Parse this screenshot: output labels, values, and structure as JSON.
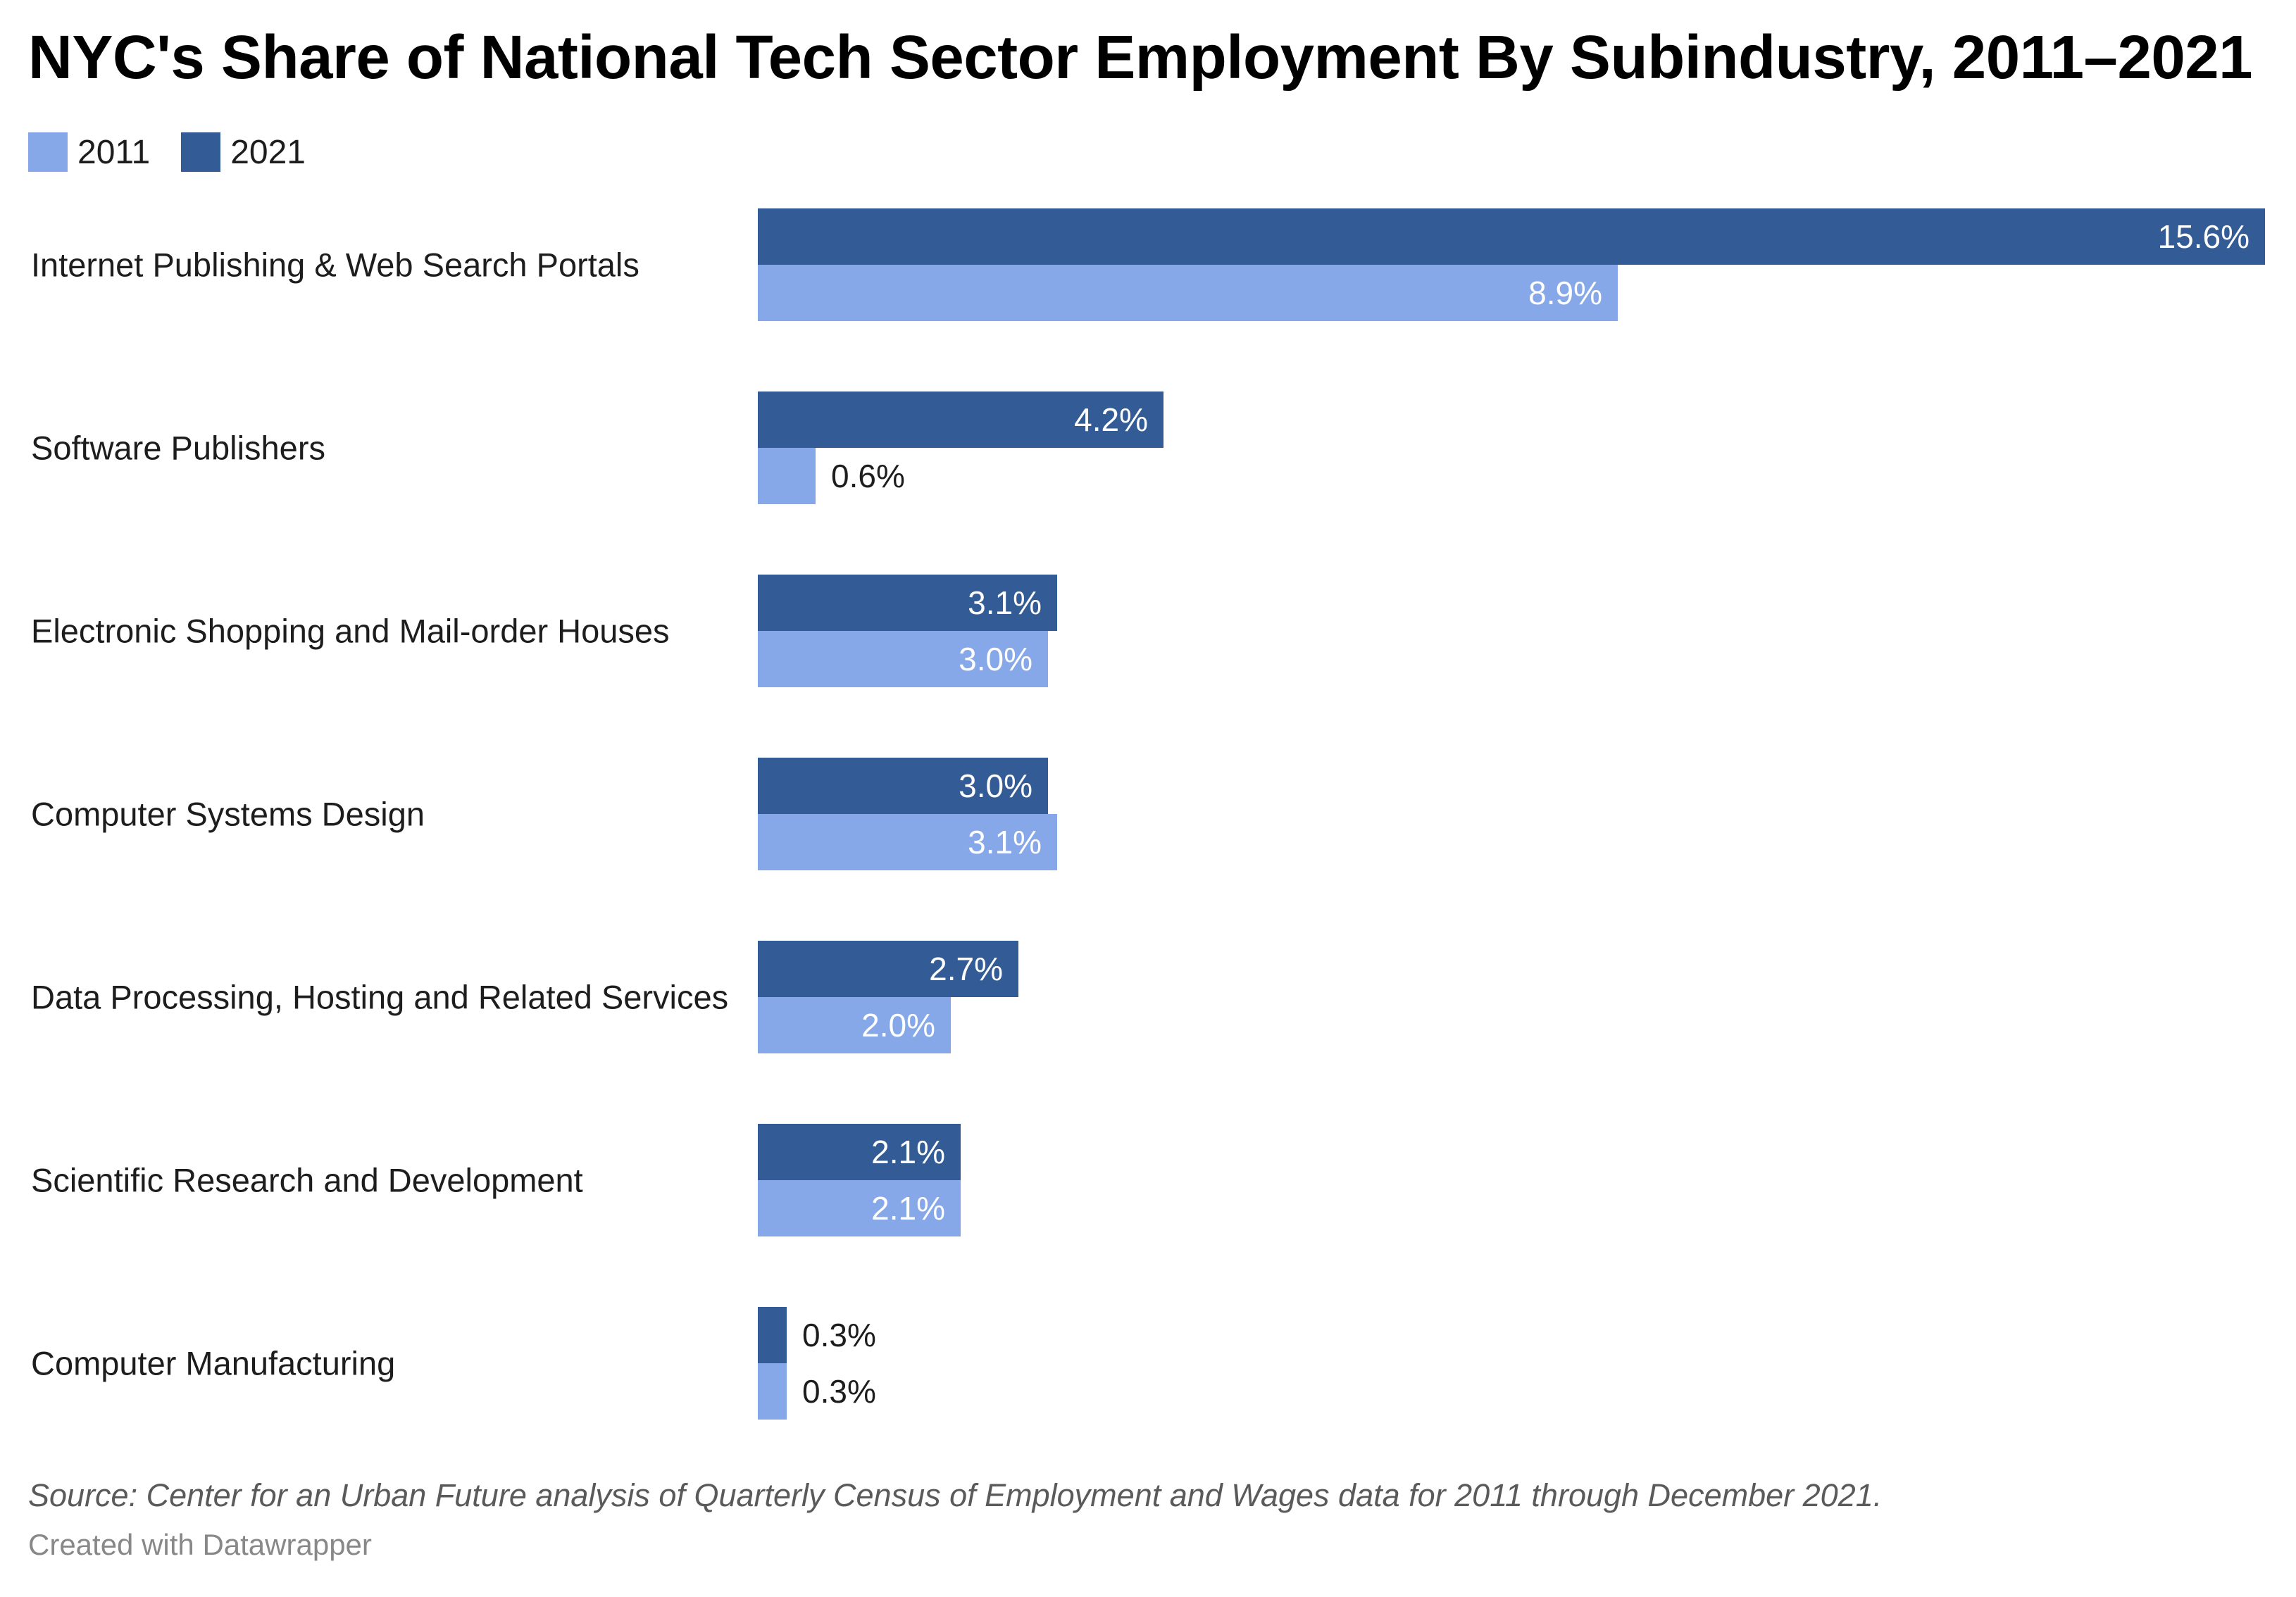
{
  "title": "NYC's Share of National Tech Sector Employment By Subindustry, 2011–2021",
  "legend": [
    {
      "label": "2011",
      "color": "#87a8e8"
    },
    {
      "label": "2021",
      "color": "#335c96"
    }
  ],
  "footer": {
    "source": "Source: Center for an Urban Future analysis of Quarterly Census of Employment and Wages data for 2011 through December 2021.",
    "credit": "Created with Datawrapper"
  },
  "chart_data": {
    "type": "bar",
    "orientation": "horizontal",
    "title": "NYC's Share of National Tech Sector Employment By Subindustry, 2011–2021",
    "xlabel": "",
    "ylabel": "",
    "unit": "%",
    "xlim": [
      0,
      15.6
    ],
    "grid": false,
    "legend_position": "top-left",
    "categories": [
      "Internet Publishing & Web Search Portals",
      "Software Publishers",
      "Electronic Shopping and Mail-order Houses",
      "Computer Systems Design",
      "Data Processing, Hosting and Related Services",
      "Scientific Research and Development",
      "Computer Manufacturing"
    ],
    "series": [
      {
        "name": "2021",
        "color": "#335c96",
        "values": [
          15.6,
          4.2,
          3.1,
          3.0,
          2.7,
          2.1,
          0.3
        ],
        "labels": [
          "15.6%",
          "4.2%",
          "3.1%",
          "3.0%",
          "2.7%",
          "2.1%",
          "0.3%"
        ]
      },
      {
        "name": "2011",
        "color": "#87a8e8",
        "values": [
          8.9,
          0.6,
          3.0,
          3.1,
          2.0,
          2.1,
          0.3
        ],
        "labels": [
          "8.9%",
          "0.6%",
          "3.0%",
          "3.1%",
          "2.0%",
          "2.1%",
          "0.3%"
        ]
      }
    ]
  }
}
